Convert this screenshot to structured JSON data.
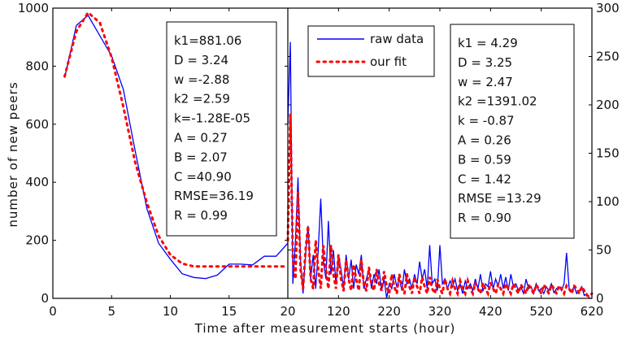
{
  "chart_data": [
    {
      "type": "line",
      "panel": "left",
      "xlabel": "Time after measurement starts (hour)",
      "ylabel": "number of new peers",
      "xlim": [
        0,
        20
      ],
      "ylim": [
        0,
        1000
      ],
      "xticks": [
        "0",
        "5",
        "10",
        "15",
        "20"
      ],
      "yticks": [
        "0",
        "200",
        "400",
        "600",
        "800",
        "1000"
      ],
      "x": [
        1,
        2,
        3,
        4,
        5,
        6,
        7,
        8,
        9,
        10,
        11,
        12,
        13,
        14,
        15,
        16,
        17,
        18,
        19,
        20
      ],
      "series": [
        {
          "name": "raw data",
          "color": "#0000ff",
          "style": "solid",
          "values": [
            760,
            940,
            975,
            905,
            835,
            720,
            510,
            310,
            190,
            135,
            85,
            72,
            68,
            80,
            118,
            118,
            115,
            145,
            145,
            190
          ]
        },
        {
          "name": "our fit",
          "color": "#ff0000",
          "style": "dotted",
          "values": [
            765,
            920,
            985,
            950,
            830,
            660,
            470,
            330,
            215,
            150,
            120,
            110,
            110,
            110,
            110,
            110,
            110,
            110,
            110,
            110
          ]
        }
      ],
      "annotation": [
        "k1=881.06",
        "D = 3.24",
        "w =-2.88",
        "k2 =2.59",
        "k=-1.28E-05",
        "A = 0.27",
        "B = 2.07",
        "C =40.90",
        "RMSE=36.19",
        "R = 0.99"
      ]
    },
    {
      "type": "line",
      "panel": "right",
      "xlim": [
        20,
        620
      ],
      "ylim": [
        0,
        300
      ],
      "xticks": [
        "20",
        "120",
        "220",
        "320",
        "420",
        "520",
        "620"
      ],
      "yticks": [
        "0",
        "50",
        "100",
        "150",
        "200",
        "250",
        "300"
      ],
      "x": [
        20,
        25,
        30,
        35,
        40,
        45,
        50,
        55,
        60,
        65,
        70,
        75,
        80,
        85,
        90,
        95,
        100,
        105,
        110,
        115,
        120,
        125,
        130,
        135,
        140,
        145,
        150,
        155,
        160,
        165,
        170,
        175,
        180,
        185,
        190,
        195,
        200,
        205,
        210,
        215,
        220,
        225,
        230,
        235,
        240,
        245,
        250,
        255,
        260,
        265,
        270,
        275,
        280,
        285,
        290,
        295,
        300,
        305,
        310,
        315,
        320,
        325,
        330,
        335,
        340,
        345,
        350,
        355,
        360,
        365,
        370,
        375,
        380,
        385,
        390,
        395,
        400,
        405,
        410,
        415,
        420,
        425,
        430,
        435,
        440,
        445,
        450,
        455,
        460,
        465,
        470,
        475,
        480,
        485,
        490,
        495,
        500,
        505,
        510,
        515,
        520,
        525,
        530,
        535,
        540,
        545,
        550,
        555,
        560,
        565,
        570,
        575,
        580,
        585,
        590,
        595,
        600,
        605,
        610,
        615,
        620
      ],
      "series": [
        {
          "name": "raw data",
          "color": "#0000ff",
          "style": "solid",
          "values": [
            180,
            265,
            15,
            60,
            125,
            40,
            5,
            45,
            75,
            20,
            45,
            10,
            50,
            103,
            40,
            20,
            80,
            25,
            50,
            15,
            45,
            30,
            10,
            45,
            20,
            40,
            10,
            35,
            25,
            45,
            10,
            20,
            30,
            10,
            25,
            15,
            30,
            8,
            20,
            0,
            15,
            10,
            25,
            12,
            20,
            8,
            30,
            15,
            20,
            10,
            25,
            15,
            38,
            20,
            30,
            10,
            55,
            15,
            20,
            8,
            55,
            15,
            20,
            10,
            18,
            12,
            20,
            8,
            15,
            5,
            18,
            10,
            15,
            8,
            20,
            10,
            25,
            8,
            15,
            12,
            28,
            10,
            20,
            12,
            25,
            10,
            22,
            8,
            25,
            12,
            15,
            8,
            12,
            5,
            20,
            10,
            12,
            5,
            15,
            8,
            10,
            5,
            12,
            8,
            15,
            6,
            10,
            12,
            8,
            15,
            47,
            10,
            8,
            12,
            5,
            8,
            12,
            3,
            5,
            0,
            0
          ]
        },
        {
          "name": "our fit",
          "color": "#ff0000",
          "style": "dotted",
          "values": [
            60,
            190,
            40,
            20,
            110,
            30,
            10,
            50,
            75,
            20,
            10,
            60,
            30,
            10,
            55,
            30,
            10,
            55,
            25,
            10,
            45,
            20,
            8,
            40,
            20,
            8,
            35,
            20,
            8,
            40,
            15,
            8,
            32,
            15,
            8,
            30,
            15,
            8,
            28,
            12,
            5,
            25,
            12,
            5,
            25,
            12,
            5,
            25,
            12,
            5,
            22,
            12,
            5,
            22,
            12,
            5,
            22,
            10,
            5,
            20,
            10,
            5,
            20,
            10,
            5,
            18,
            10,
            5,
            18,
            10,
            5,
            18,
            10,
            5,
            16,
            10,
            5,
            16,
            10,
            5,
            16,
            10,
            5,
            15,
            10,
            5,
            15,
            10,
            5,
            15,
            10,
            5,
            14,
            10,
            5,
            14,
            10,
            5,
            14,
            10,
            5,
            14,
            10,
            5,
            14,
            10,
            5,
            13,
            10,
            5,
            13,
            10,
            5,
            13,
            10,
            5,
            12,
            8,
            3,
            2,
            5
          ]
        }
      ],
      "annotation": [
        "k1 = 4.29",
        "D = 3.25",
        "w = 2.47",
        "k2 =1391.02",
        "k = -0.87",
        "A = 0.26",
        "B = 0.59",
        "C = 1.42",
        "RMSE =13.29",
        "R = 0.90"
      ]
    }
  ],
  "legend": {
    "placement": "top",
    "items": [
      "raw data",
      "our fit"
    ]
  }
}
